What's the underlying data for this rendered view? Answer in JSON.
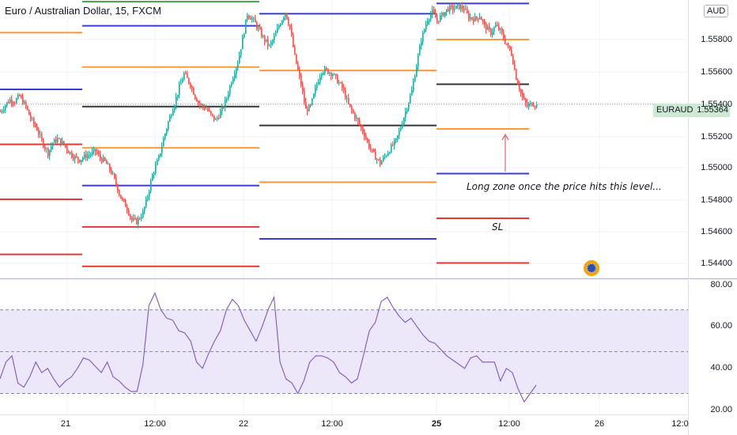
{
  "header": {
    "title": "Euro / Australian Dollar, 15, FXCM",
    "currency": "AUD"
  },
  "price_badge": {
    "symbol": "EURAUD",
    "price": "1.55364"
  },
  "annotations": {
    "long_zone": "Long zone once the price hits this level...",
    "stop_loss": "SL"
  },
  "icons": {
    "nav": "globe-icon"
  },
  "colors": {
    "bull": "#26a69a",
    "bear": "#ef5350",
    "blue_level": "#3b3bd4",
    "orange_level": "#ff9a3c",
    "black_level": "#333333",
    "red_level": "#e53935",
    "green_level": "#43a047",
    "rsi_line": "#7e57c2",
    "rsi_band": "#ece7f9",
    "badge_bg": "#cde9d4",
    "nav_icon": "#2a4fb5"
  },
  "axes": {
    "price_ticks": [
      "1.55800",
      "1.55600",
      "1.55400",
      "1.55200",
      "1.55000",
      "1.54800",
      "1.54600",
      "1.54400"
    ],
    "rsi_ticks": [
      "80.00",
      "60.00",
      "40.00",
      "20.00"
    ],
    "time_ticks": [
      {
        "label": "21",
        "bold": false
      },
      {
        "label": "12:00",
        "bold": false
      },
      {
        "label": "22",
        "bold": false
      },
      {
        "label": "12:00",
        "bold": false
      },
      {
        "label": "25",
        "bold": true
      },
      {
        "label": "12:00",
        "bold": false
      },
      {
        "label": "26",
        "bold": false
      },
      {
        "label": "12:0",
        "bold": false
      }
    ]
  },
  "chart_data": {
    "type": "candlestick",
    "symbol": "EURAUD",
    "timeframe": "15",
    "price_axis": [
      1.5435,
      1.5597
    ],
    "last_price": 1.55364,
    "price_path": [
      [
        0,
        1.5532
      ],
      [
        3,
        1.5536
      ],
      [
        6,
        1.5539
      ],
      [
        9,
        1.5538
      ],
      [
        12,
        1.5541
      ],
      [
        16,
        1.5535
      ],
      [
        19,
        1.5528
      ],
      [
        23,
        1.5522
      ],
      [
        26,
        1.5515
      ],
      [
        30,
        1.5508
      ],
      [
        33,
        1.5514
      ],
      [
        36,
        1.5516
      ],
      [
        40,
        1.5513
      ],
      [
        43,
        1.5509
      ],
      [
        46,
        1.5506
      ],
      [
        50,
        1.5504
      ],
      [
        53,
        1.5506
      ],
      [
        56,
        1.5507
      ],
      [
        60,
        1.5509
      ],
      [
        63,
        1.5505
      ],
      [
        66,
        1.5503
      ],
      [
        70,
        1.5497
      ],
      [
        73,
        1.549
      ],
      [
        76,
        1.5482
      ],
      [
        80,
        1.5476
      ],
      [
        83,
        1.5469
      ],
      [
        86,
        1.5468
      ],
      [
        90,
        1.5473
      ],
      [
        93,
        1.5483
      ],
      [
        96,
        1.5495
      ],
      [
        100,
        1.5505
      ],
      [
        103,
        1.5516
      ],
      [
        106,
        1.5526
      ],
      [
        110,
        1.5537
      ],
      [
        113,
        1.5546
      ],
      [
        116,
        1.5554
      ],
      [
        120,
        1.5548
      ],
      [
        123,
        1.5541
      ],
      [
        126,
        1.5536
      ],
      [
        130,
        1.5534
      ],
      [
        133,
        1.553
      ],
      [
        136,
        1.5527
      ],
      [
        140,
        1.5533
      ],
      [
        143,
        1.554
      ],
      [
        146,
        1.555
      ],
      [
        150,
        1.5561
      ],
      [
        153,
        1.5574
      ],
      [
        156,
        1.5589
      ],
      [
        160,
        1.5585
      ],
      [
        163,
        1.558
      ],
      [
        166,
        1.5575
      ],
      [
        170,
        1.557
      ],
      [
        173,
        1.5575
      ],
      [
        176,
        1.5582
      ],
      [
        180,
        1.559
      ],
      [
        183,
        1.5581
      ],
      [
        186,
        1.5564
      ],
      [
        190,
        1.5548
      ],
      [
        193,
        1.5533
      ],
      [
        196,
        1.5535
      ],
      [
        200,
        1.5548
      ],
      [
        203,
        1.5556
      ],
      [
        206,
        1.5556
      ],
      [
        210,
        1.5554
      ],
      [
        213,
        1.555
      ],
      [
        216,
        1.5546
      ],
      [
        220,
        1.5536
      ],
      [
        223,
        1.5531
      ],
      [
        226,
        1.5526
      ],
      [
        230,
        1.5519
      ],
      [
        233,
        1.5512
      ],
      [
        236,
        1.5507
      ],
      [
        240,
        1.5502
      ],
      [
        243,
        1.5506
      ],
      [
        246,
        1.551
      ],
      [
        250,
        1.5515
      ],
      [
        253,
        1.5523
      ],
      [
        256,
        1.5532
      ],
      [
        260,
        1.5544
      ],
      [
        263,
        1.5559
      ],
      [
        266,
        1.5574
      ],
      [
        270,
        1.5586
      ],
      [
        273,
        1.559
      ],
      [
        276,
        1.5585
      ],
      [
        280,
        1.5589
      ],
      [
        283,
        1.5592
      ],
      [
        286,
        1.5592
      ],
      [
        290,
        1.5593
      ],
      [
        293,
        1.5592
      ],
      [
        296,
        1.5587
      ],
      [
        300,
        1.5586
      ],
      [
        303,
        1.5588
      ],
      [
        306,
        1.5582
      ],
      [
        310,
        1.5578
      ],
      [
        313,
        1.5582
      ],
      [
        316,
        1.5579
      ],
      [
        320,
        1.5571
      ],
      [
        323,
        1.5566
      ],
      [
        326,
        1.5552
      ],
      [
        330,
        1.554
      ],
      [
        333,
        1.5535
      ],
      [
        336,
        1.5537
      ],
      [
        339,
        1.5536
      ]
    ],
    "rsi": {
      "range": [
        20,
        85
      ],
      "levels": [
        70,
        50,
        30
      ],
      "values": [
        37,
        45,
        48,
        35,
        33,
        38,
        45,
        40,
        42,
        37,
        33,
        36,
        38,
        42,
        47,
        46,
        43,
        40,
        45,
        38,
        36,
        33,
        31,
        31,
        44,
        72,
        78,
        70,
        66,
        65,
        60,
        59,
        55,
        45,
        42,
        49,
        55,
        60,
        70,
        75,
        72,
        65,
        60,
        55,
        62,
        70,
        76,
        45,
        37,
        35,
        30,
        36,
        45,
        48,
        48,
        47,
        45,
        40,
        38,
        35,
        37,
        48,
        60,
        64,
        74,
        76,
        71,
        67,
        64,
        66,
        62,
        58,
        55,
        54,
        51,
        48,
        46,
        44,
        42,
        47,
        48,
        45,
        45,
        45,
        36,
        42,
        40,
        32,
        26,
        30,
        34
      ]
    },
    "levels": [
      {
        "x0": 0,
        "x1": 104,
        "price": 1.5578,
        "color": "orange"
      },
      {
        "x0": 0,
        "x1": 104,
        "price": 1.5545,
        "color": "blue"
      },
      {
        "x0": 0,
        "x1": 104,
        "price": 1.5513,
        "color": "red"
      },
      {
        "x0": 0,
        "x1": 104,
        "price": 1.5481,
        "color": "red"
      },
      {
        "x0": 0,
        "x1": 104,
        "price": 1.5449,
        "color": "red"
      },
      {
        "x0": 104,
        "x1": 328,
        "price": 1.5596,
        "color": "green"
      },
      {
        "x0": 104,
        "x1": 328,
        "price": 1.5582,
        "color": "blue"
      },
      {
        "x0": 104,
        "x1": 328,
        "price": 1.5558,
        "color": "orange"
      },
      {
        "x0": 104,
        "x1": 328,
        "price": 1.5535,
        "color": "black"
      },
      {
        "x0": 104,
        "x1": 328,
        "price": 1.5511,
        "color": "orange"
      },
      {
        "x0": 104,
        "x1": 328,
        "price": 1.5489,
        "color": "blue"
      },
      {
        "x0": 104,
        "x1": 328,
        "price": 1.5465,
        "color": "red"
      },
      {
        "x0": 104,
        "x1": 328,
        "price": 1.5442,
        "color": "red"
      },
      {
        "x0": 328,
        "x1": 552,
        "price": 1.5589,
        "color": "blue"
      },
      {
        "x0": 328,
        "x1": 552,
        "price": 1.5556,
        "color": "orange"
      },
      {
        "x0": 328,
        "x1": 552,
        "price": 1.5524,
        "color": "black"
      },
      {
        "x0": 328,
        "x1": 552,
        "price": 1.5491,
        "color": "orange"
      },
      {
        "x0": 328,
        "x1": 552,
        "price": 1.5458,
        "color": "blue"
      },
      {
        "x0": 552,
        "x1": 669,
        "price": 1.5595,
        "color": "blue"
      },
      {
        "x0": 552,
        "x1": 669,
        "price": 1.5574,
        "color": "orange"
      },
      {
        "x0": 552,
        "x1": 669,
        "price": 1.5548,
        "color": "black"
      },
      {
        "x0": 552,
        "x1": 669,
        "price": 1.5522,
        "color": "orange"
      },
      {
        "x0": 552,
        "x1": 669,
        "price": 1.5496,
        "color": "blue"
      },
      {
        "x0": 552,
        "x1": 669,
        "price": 1.547,
        "color": "red"
      },
      {
        "x0": 552,
        "x1": 669,
        "price": 1.5444,
        "color": "red"
      }
    ]
  }
}
